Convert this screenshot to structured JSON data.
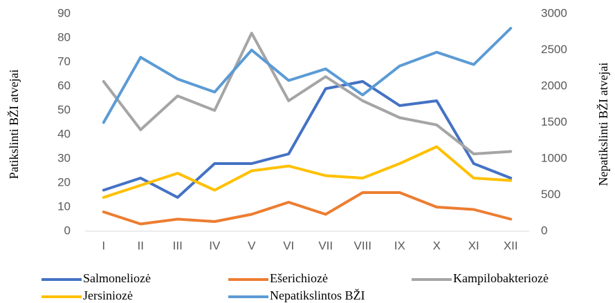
{
  "chart_data": {
    "type": "line",
    "categories": [
      "I",
      "II",
      "III",
      "IV",
      "V",
      "VI",
      "VII",
      "VIII",
      "IX",
      "X",
      "XI",
      "XII"
    ],
    "ylabel": "Patikslinti BŽI atvejai",
    "y2label": "Nepatikslinti BŽI atvejai",
    "ylim": [
      0,
      90
    ],
    "yticks": [
      0,
      10,
      20,
      30,
      40,
      50,
      60,
      70,
      80,
      90
    ],
    "y2lim": [
      0,
      3000
    ],
    "y2ticks": [
      0,
      500,
      1000,
      1500,
      2000,
      2500,
      3000
    ],
    "grid": false,
    "legend": "bottom",
    "series": [
      {
        "name": "Salmoneliozė",
        "color": "#4472c4",
        "values": [
          17,
          22,
          14,
          28,
          28,
          32,
          59,
          62,
          52,
          54,
          28,
          22
        ]
      },
      {
        "name": "Ešerichiozė",
        "color": "#ed7d31",
        "values": [
          8,
          3,
          5,
          4,
          7,
          12,
          7,
          16,
          16,
          10,
          9,
          5
        ]
      },
      {
        "name": "Kampilobakteriozė",
        "color": "#a5a5a5",
        "values": [
          62,
          42,
          56,
          50,
          82,
          54,
          64,
          54,
          47,
          44,
          32,
          33
        ]
      },
      {
        "name": "Jersiniozė",
        "color": "#ffc000",
        "values": [
          14,
          19,
          24,
          17,
          25,
          27,
          23,
          22,
          28,
          35,
          22,
          21
        ]
      },
      {
        "name": "Nepatikslintos BŽI",
        "color": "#5b9bd5",
        "axis": "y2",
        "values": [
          1500,
          2400,
          2100,
          1920,
          2500,
          2080,
          2240,
          1880,
          2280,
          2470,
          2300,
          2800
        ]
      }
    ]
  }
}
